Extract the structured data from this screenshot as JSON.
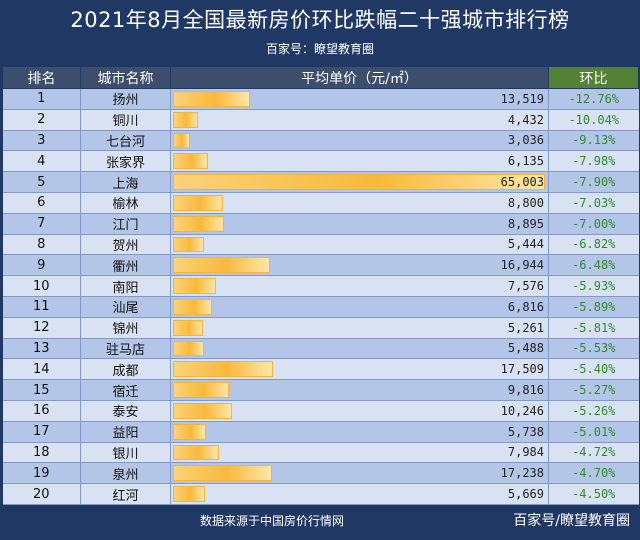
{
  "title": "2021年8月全国最新房价环比跌幅二十强城市排行榜",
  "subtitle": "百家号：瞭望教育圈",
  "headers": {
    "rank": "排名",
    "city": "城市名称",
    "price": "平均单价（元/㎡）",
    "change": "环比"
  },
  "footer": {
    "source": "数据来源于中国房价行情网",
    "brand": "百家号/瞭望教育圈"
  },
  "colors": {
    "background": "#1f3864",
    "bar": "#f8b93a",
    "change_text": "#2e8b2e",
    "row_odd": "#b4c6e7",
    "row_even": "#d9e2f3"
  },
  "chart_data": {
    "type": "table",
    "columns": [
      "排名",
      "城市名称",
      "平均单价（元/㎡）",
      "环比"
    ],
    "rows": [
      {
        "rank": "1",
        "city": "扬州",
        "price": 13519,
        "price_text": "13,519",
        "change": "-12.76%"
      },
      {
        "rank": "2",
        "city": "铜川",
        "price": 4432,
        "price_text": "4,432",
        "change": "-10.04%"
      },
      {
        "rank": "3",
        "city": "七台河",
        "price": 3036,
        "price_text": "3,036",
        "change": "-9.13%"
      },
      {
        "rank": "4",
        "city": "张家界",
        "price": 6135,
        "price_text": "6,135",
        "change": "-7.98%"
      },
      {
        "rank": "5",
        "city": "上海",
        "price": 65003,
        "price_text": "65,003",
        "change": "-7.90%"
      },
      {
        "rank": "6",
        "city": "榆林",
        "price": 8800,
        "price_text": "8,800",
        "change": "-7.03%"
      },
      {
        "rank": "7",
        "city": "江门",
        "price": 8895,
        "price_text": "8,895",
        "change": "-7.00%"
      },
      {
        "rank": "8",
        "city": "贺州",
        "price": 5444,
        "price_text": "5,444",
        "change": "-6.82%"
      },
      {
        "rank": "9",
        "city": "衢州",
        "price": 16944,
        "price_text": "16,944",
        "change": "-6.48%"
      },
      {
        "rank": "10",
        "city": "南阳",
        "price": 7576,
        "price_text": "7,576",
        "change": "-5.93%"
      },
      {
        "rank": "11",
        "city": "汕尾",
        "price": 6816,
        "price_text": "6,816",
        "change": "-5.89%"
      },
      {
        "rank": "12",
        "city": "锦州",
        "price": 5261,
        "price_text": "5,261",
        "change": "-5.81%"
      },
      {
        "rank": "13",
        "city": "驻马店",
        "price": 5488,
        "price_text": "5,488",
        "change": "-5.53%"
      },
      {
        "rank": "14",
        "city": "成都",
        "price": 17509,
        "price_text": "17,509",
        "change": "-5.40%"
      },
      {
        "rank": "15",
        "city": "宿迁",
        "price": 9816,
        "price_text": "9,816",
        "change": "-5.27%"
      },
      {
        "rank": "16",
        "city": "泰安",
        "price": 10246,
        "price_text": "10,246",
        "change": "-5.26%"
      },
      {
        "rank": "17",
        "city": "益阳",
        "price": 5738,
        "price_text": "5,738",
        "change": "-5.01%"
      },
      {
        "rank": "18",
        "city": "银川",
        "price": 7984,
        "price_text": "7,984",
        "change": "-4.72%"
      },
      {
        "rank": "19",
        "city": "泉州",
        "price": 17238,
        "price_text": "17,238",
        "change": "-4.70%"
      },
      {
        "rank": "20",
        "city": "红河",
        "price": 5669,
        "price_text": "5,669",
        "change": "-4.50%"
      }
    ]
  }
}
